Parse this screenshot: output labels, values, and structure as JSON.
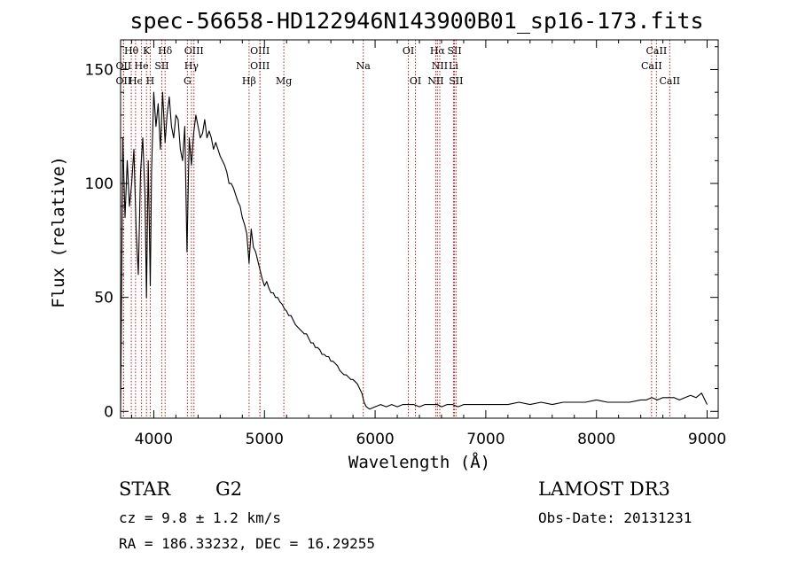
{
  "chart_data": {
    "type": "line",
    "title": "spec-56658-HD122946N143900B01_sp16-173.fits",
    "xlabel": "Wavelength (Å)",
    "ylabel": "Flux (relative)",
    "xlim": [
      3700,
      9100
    ],
    "ylim": [
      -3,
      163
    ],
    "x_ticks": [
      4000,
      5000,
      6000,
      7000,
      8000,
      9000
    ],
    "y_ticks": [
      0,
      50,
      100,
      150
    ],
    "grid": false,
    "line_color": "#000000",
    "marker_color": "#b22222",
    "series": [
      {
        "x": [
          3700,
          3720,
          3740,
          3760,
          3780,
          3800,
          3820,
          3840,
          3860,
          3880,
          3900,
          3920,
          3934,
          3950,
          3968,
          3980,
          4000,
          4020,
          4040,
          4060,
          4080,
          4102,
          4120,
          4140,
          4160,
          4180,
          4200,
          4220,
          4240,
          4260,
          4280,
          4300,
          4320,
          4340,
          4360,
          4380,
          4400,
          4420,
          4440,
          4460,
          4480,
          4500,
          4520,
          4540,
          4560,
          4580,
          4600,
          4620,
          4640,
          4660,
          4680,
          4700,
          4720,
          4740,
          4760,
          4780,
          4800,
          4820,
          4840,
          4861,
          4880,
          4900,
          4920,
          4940,
          4960,
          4980,
          5000,
          5020,
          5040,
          5060,
          5080,
          5100,
          5120,
          5140,
          5160,
          5180,
          5200,
          5220,
          5240,
          5260,
          5280,
          5300,
          5320,
          5340,
          5360,
          5380,
          5400,
          5420,
          5440,
          5460,
          5480,
          5500,
          5520,
          5540,
          5560,
          5580,
          5600,
          5620,
          5640,
          5660,
          5680,
          5700,
          5720,
          5740,
          5760,
          5780,
          5800,
          5820,
          5840,
          5860,
          5880,
          5900,
          5920,
          5950,
          6000,
          6050,
          6100,
          6150,
          6200,
          6250,
          6300,
          6350,
          6400,
          6450,
          6500,
          6563,
          6600,
          6650,
          6700,
          6750,
          6800,
          6850,
          6900,
          6950,
          7000,
          7100,
          7200,
          7300,
          7400,
          7500,
          7600,
          7700,
          7800,
          7900,
          8000,
          8100,
          8200,
          8300,
          8400,
          8450,
          8500,
          8550,
          8600,
          8650,
          8700,
          8750,
          8800,
          8850,
          8900,
          8950,
          9000
        ],
        "y": [
          0,
          120,
          85,
          110,
          90,
          100,
          115,
          80,
          60,
          105,
          120,
          95,
          50,
          110,
          55,
          105,
          140,
          125,
          135,
          115,
          140,
          118,
          130,
          138,
          125,
          120,
          130,
          128,
          115,
          110,
          125,
          70,
          120,
          108,
          122,
          130,
          125,
          120,
          122,
          128,
          120,
          123,
          120,
          115,
          118,
          115,
          112,
          110,
          108,
          105,
          100,
          100,
          98,
          95,
          92,
          90,
          85,
          82,
          78,
          65,
          80,
          72,
          70,
          66,
          62,
          58,
          55,
          57,
          54,
          52,
          52,
          50,
          50,
          48,
          47,
          45,
          44,
          42,
          42,
          40,
          38,
          37,
          36,
          35,
          34,
          34,
          32,
          30,
          30,
          28,
          28,
          27,
          25,
          25,
          24,
          24,
          22,
          22,
          21,
          20,
          18,
          17,
          16,
          16,
          15,
          14,
          14,
          13,
          12,
          10,
          8,
          4,
          2,
          1,
          2,
          3,
          2,
          3,
          2,
          3,
          3,
          3,
          2,
          3,
          3,
          3,
          2,
          3,
          3,
          2,
          3,
          3,
          3,
          3,
          3,
          3,
          3,
          4,
          3,
          4,
          3,
          4,
          4,
          4,
          5,
          4,
          4,
          4,
          5,
          5,
          6,
          5,
          6,
          6,
          6,
          5,
          6,
          7,
          6,
          8,
          3
        ]
      }
    ],
    "line_markers": [
      {
        "label": "Hθ",
        "x": 3797,
        "row": 0
      },
      {
        "label": "K",
        "x": 3934,
        "row": 0
      },
      {
        "label": "Hδ",
        "x": 4102,
        "row": 0
      },
      {
        "label": "OIII",
        "x": 4363,
        "row": 0
      },
      {
        "label": "OIII",
        "x": 4959,
        "row": 0
      },
      {
        "label": "OI",
        "x": 6300,
        "row": 0
      },
      {
        "label": "Hα",
        "x": 6563,
        "row": 0
      },
      {
        "label": "SII",
        "x": 6717,
        "row": 0
      },
      {
        "label": "CaII",
        "x": 8542,
        "row": 0
      },
      {
        "label": "OII",
        "x": 3727,
        "row": 1
      },
      {
        "label": "He",
        "x": 3889,
        "row": 1
      },
      {
        "label": "SII",
        "x": 4072,
        "row": 1
      },
      {
        "label": "Hγ",
        "x": 4340,
        "row": 1
      },
      {
        "label": "OIII",
        "x": 4959,
        "row": 1
      },
      {
        "label": "Na",
        "x": 5893,
        "row": 1
      },
      {
        "label": "NII",
        "x": 6584,
        "row": 1
      },
      {
        "label": "Li",
        "x": 6708,
        "row": 1
      },
      {
        "label": "CaII",
        "x": 8498,
        "row": 1
      },
      {
        "label": "OII",
        "x": 3727,
        "row": 2
      },
      {
        "label": "Hϵ",
        "x": 3835,
        "row": 2
      },
      {
        "label": "H",
        "x": 3968,
        "row": 2
      },
      {
        "label": "G",
        "x": 4304,
        "row": 2
      },
      {
        "label": "Hβ",
        "x": 4861,
        "row": 2
      },
      {
        "label": "Mg",
        "x": 5175,
        "row": 2
      },
      {
        "label": "OI",
        "x": 6364,
        "row": 2
      },
      {
        "label": "NII",
        "x": 6548,
        "row": 2
      },
      {
        "label": "SII",
        "x": 6731,
        "row": 2
      },
      {
        "label": "CaII",
        "x": 8662,
        "row": 2
      }
    ]
  },
  "footer": {
    "class_label": "STAR",
    "subclass": "G2",
    "cz": "cz = 9.8 ± 1.2 km/s",
    "coords": "RA = 186.33232, DEC =  16.29255",
    "survey": "LAMOST DR3",
    "obs_date": "Obs-Date: 20131231"
  }
}
